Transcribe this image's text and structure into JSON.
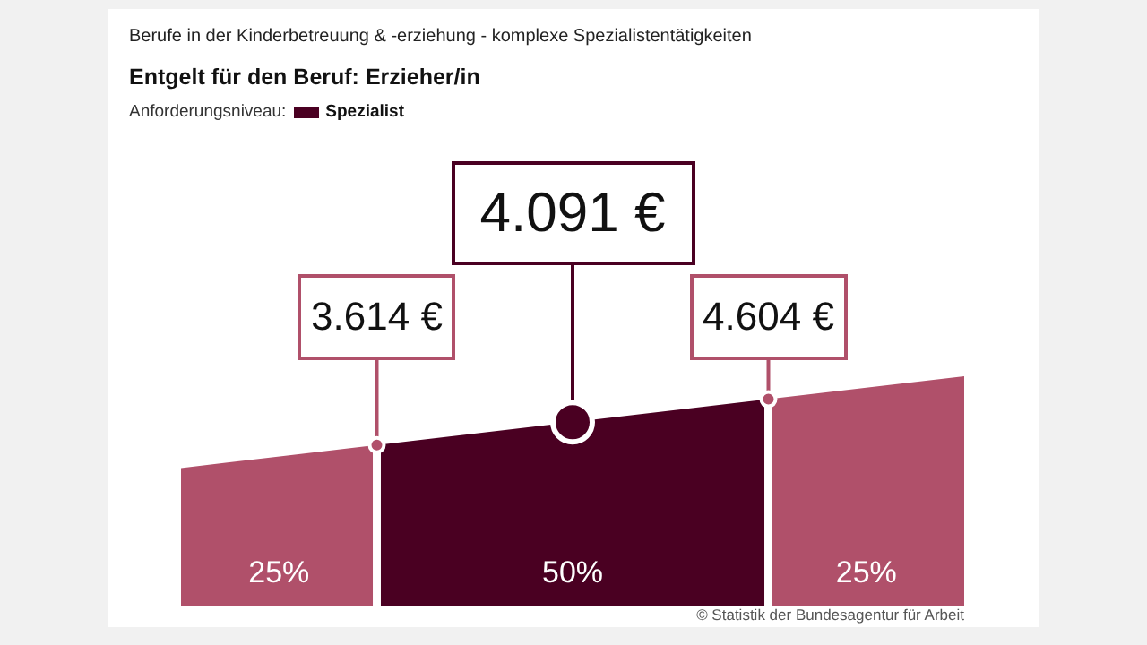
{
  "chart_data": {
    "type": "other",
    "subtitle": "Berufe in der Kinderbetreuung & -erziehung - komplexe Spezialistentätigkeiten",
    "title": "Entgelt für den Beruf: Erzieher/in",
    "legend_title": "Anforderungsniveau:",
    "legend": "top left",
    "series": [
      {
        "name": "Spezialist",
        "color": "#4a0022",
        "values": [
          25,
          50,
          25
        ],
        "colors": [
          "#b0506a",
          "#4a0022",
          "#b0506a"
        ],
        "value_labels": [
          "25%",
          "50%",
          "25%"
        ]
      }
    ],
    "annotations": [
      "3.614 €",
      "4.091 €",
      "4.604 €",
      "© Statistik der Bundesagentur für Arbeit"
    ]
  }
}
